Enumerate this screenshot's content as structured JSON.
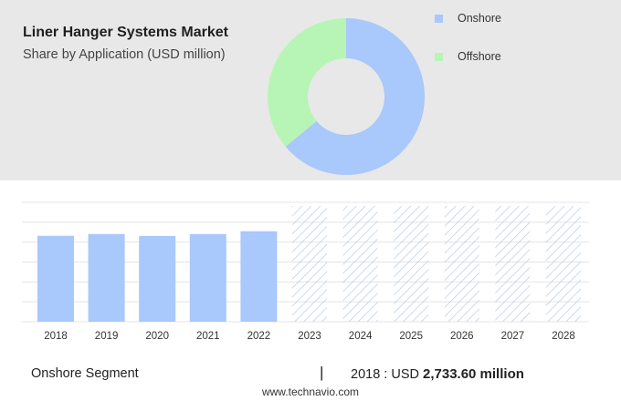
{
  "header": {
    "title": "Liner Hanger Systems Market",
    "subtitle": "Share by Application (USD million)"
  },
  "colors": {
    "onshore": "#a9c8fb",
    "offshore": "#b7f5b6",
    "forecast_hatch": "#b6c9ee",
    "panel_bg": "#e8e8e8"
  },
  "chart_data": [
    {
      "type": "pie",
      "style": "donut",
      "legend_position": "right",
      "series": [
        {
          "name": "Onshore",
          "value": 64
        },
        {
          "name": "Offshore",
          "value": 36
        }
      ]
    },
    {
      "type": "bar",
      "grid": true,
      "categories": [
        "2018",
        "2019",
        "2020",
        "2021",
        "2022",
        "2023",
        "2024",
        "2025",
        "2026",
        "2027",
        "2028"
      ],
      "values": [
        2733.6,
        2790,
        2730,
        2790,
        2880,
        null,
        null,
        null,
        null,
        null,
        null
      ],
      "forecast_categories": [
        "2023",
        "2024",
        "2025",
        "2026",
        "2027",
        "2028"
      ],
      "ylim": [
        0,
        3800
      ]
    }
  ],
  "footer": {
    "segment": "Onshore Segment",
    "divider": "|",
    "year_label": "2018 : USD",
    "amount": "2,733.60 million",
    "site": "www.technavio.com"
  }
}
